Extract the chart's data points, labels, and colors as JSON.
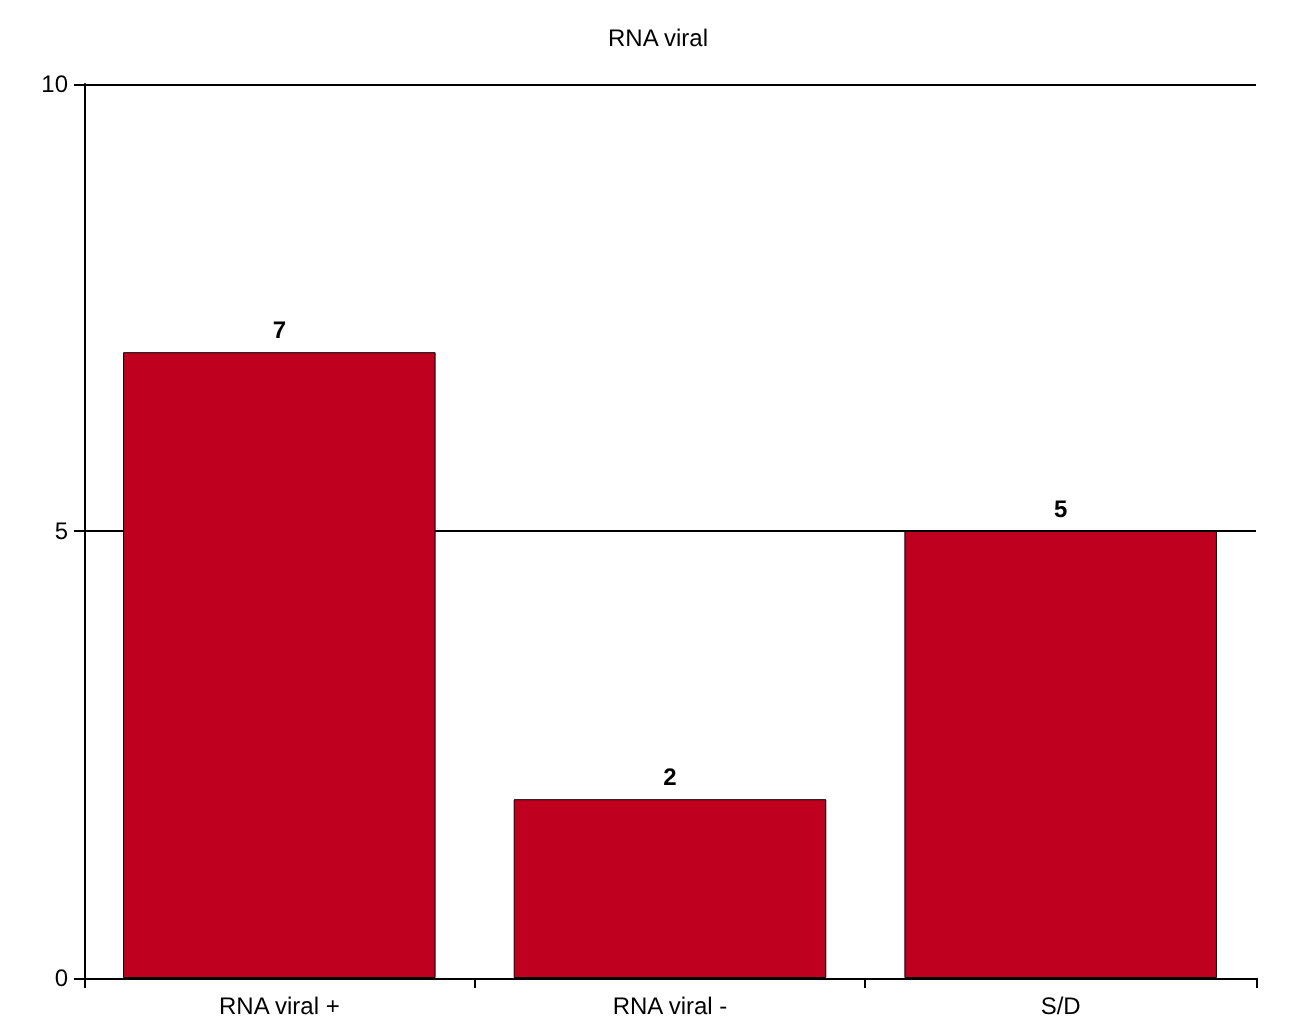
{
  "chart_data": {
    "type": "bar",
    "title": "RNA viral",
    "categories": [
      "RNA viral +",
      "RNA viral -",
      "S/D"
    ],
    "values": [
      7,
      2,
      5
    ],
    "color": "#c0001f",
    "ylim": [
      0,
      10
    ],
    "yticks": [
      0,
      5,
      10
    ],
    "grid": "y",
    "data_labels": true
  }
}
